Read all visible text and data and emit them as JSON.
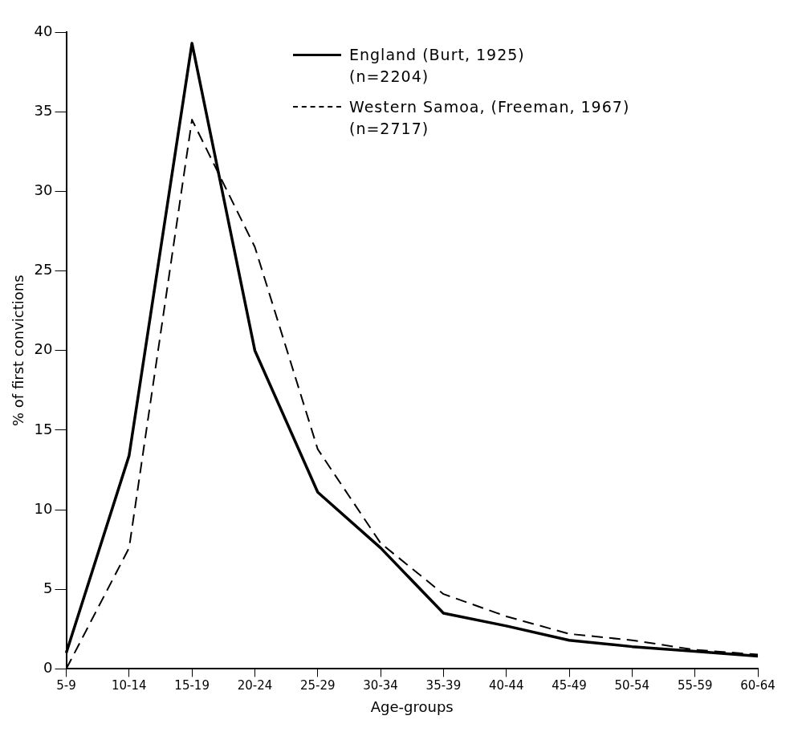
{
  "chart_data": {
    "type": "line",
    "xlabel": "Age-groups",
    "ylabel": "% of first convictions",
    "categories": [
      "5-9",
      "10-14",
      "15-19",
      "20-24",
      "25-29",
      "30-34",
      "35-39",
      "40-44",
      "45-49",
      "50-54",
      "55-59",
      "60-64"
    ],
    "series": [
      {
        "name": "England (Burt, 1925)\n(n=2204)",
        "color": "#000000",
        "line_style": "solid",
        "values": [
          1,
          13.4,
          39.3,
          20,
          11.1,
          7.6,
          3.5,
          2.7,
          1.8,
          1.4,
          1.1,
          0.8
        ]
      },
      {
        "name": "Western Samoa, (Freeman, 1967)\n(n=2717)",
        "color": "#000000",
        "line_style": "dashed",
        "values": [
          0,
          7.6,
          34.5,
          26.5,
          13.8,
          7.9,
          4.7,
          3.3,
          2.2,
          1.8,
          1.2,
          0.9
        ]
      }
    ],
    "ylim": [
      0,
      40
    ],
    "yticks": [
      0,
      5,
      10,
      15,
      20,
      25,
      30,
      35,
      40
    ],
    "grid": false,
    "legend": "top right",
    "marker": "none"
  }
}
